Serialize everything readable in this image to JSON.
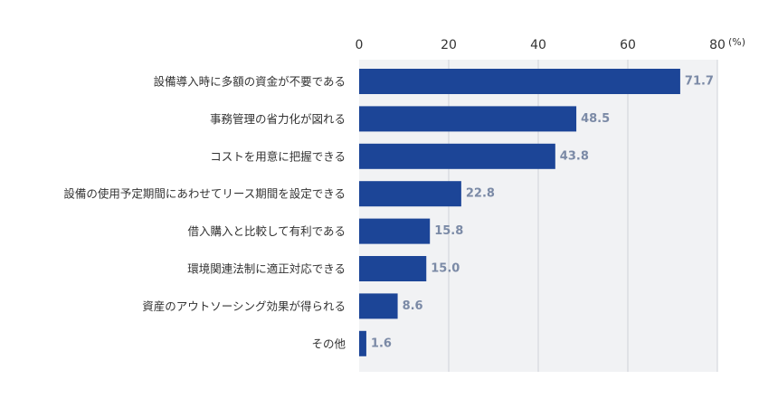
{
  "chart_data": {
    "type": "bar",
    "orientation": "horizontal",
    "categories": [
      "設備導入時に多額の資金が不要である",
      "事務管理の省力化が図れる",
      "コストを用意に把握できる",
      "設備の使用予定期間にあわせてリース期間を設定できる",
      "借入購入と比較して有利である",
      "環境関連法制に適正対応できる",
      "資産のアウトソーシング効果が得られる",
      "その他"
    ],
    "values": [
      71.7,
      48.5,
      43.8,
      22.8,
      15.8,
      15.0,
      8.6,
      1.6
    ],
    "value_labels": [
      "71.7",
      "48.5",
      "43.8",
      "22.8",
      "15.8",
      "15.0",
      "8.6",
      "1.6"
    ],
    "xlim": [
      0,
      80
    ],
    "xticks": [
      "0",
      "20",
      "40",
      "60",
      "80"
    ],
    "unit": "(%)",
    "xaxis_position": "top",
    "grid": true,
    "legend": "none"
  },
  "colors": {
    "bar": "#1c4597",
    "value_label": "#7b8aa6",
    "plot_background": "#f1f2f4",
    "grid": "#cfd3d9"
  }
}
